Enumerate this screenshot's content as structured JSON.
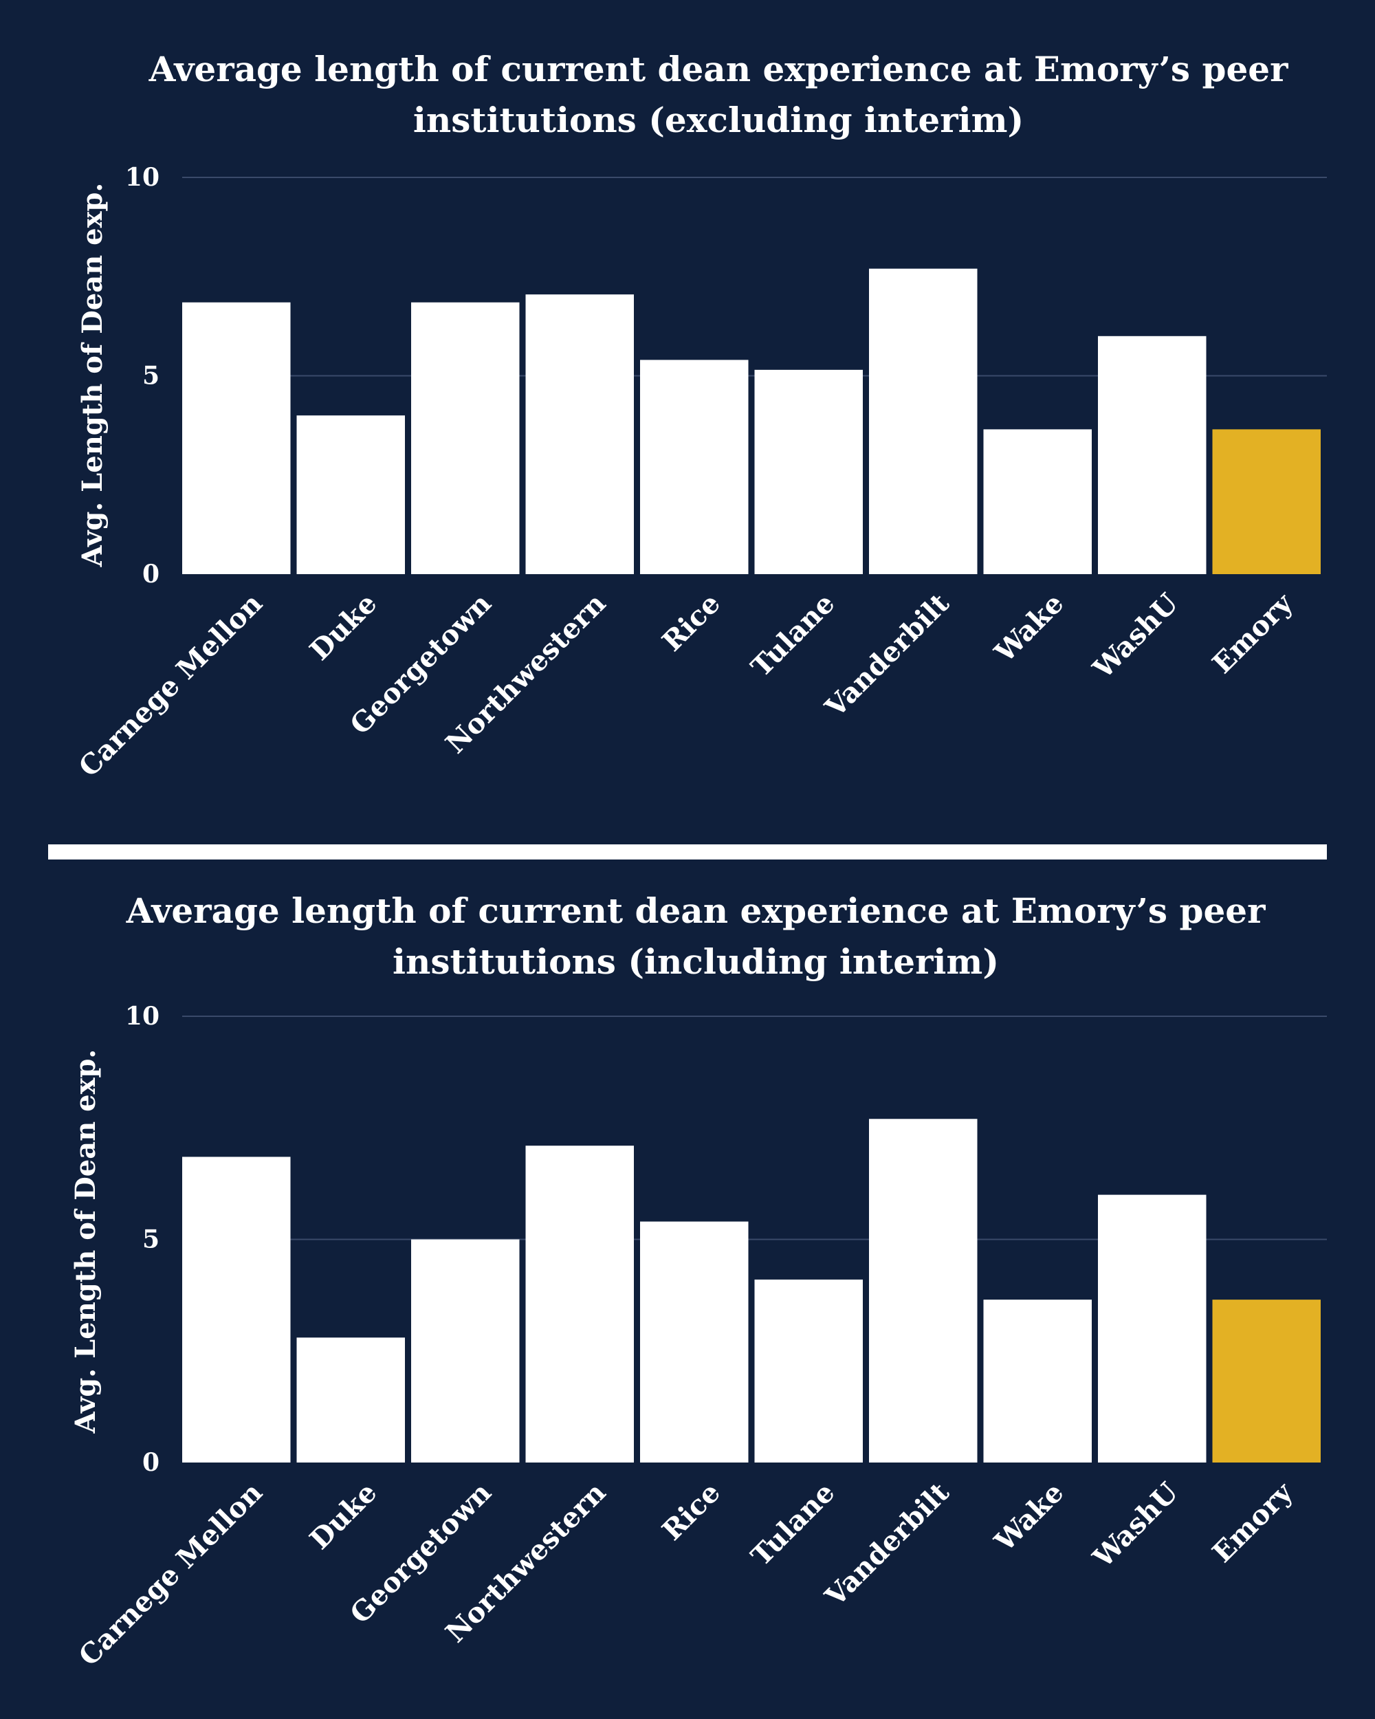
{
  "colors": {
    "background": "#0f1f3b",
    "bar": "#ffffff",
    "highlight": "#e3b124",
    "divider": "#ffffff",
    "gridline": "#3a4a6a"
  },
  "chart_data": [
    {
      "type": "bar",
      "title_lines": [
        "Average length of current dean experience at Emory’s peer",
        "institutions (excluding interim)"
      ],
      "ylabel": "Avg. Length of Dean exp.",
      "categories": [
        "Carnege Mellon",
        "Duke",
        "Georgetown",
        "Northwestern",
        "Rice",
        "Tulane",
        "Vanderbilt",
        "Wake",
        "WashU",
        "Emory"
      ],
      "values": [
        6.85,
        4.0,
        6.85,
        7.05,
        5.4,
        5.15,
        7.7,
        3.65,
        6.0,
        3.65
      ],
      "highlight": "Emory",
      "ylim": [
        0,
        10
      ],
      "yticks": [
        0,
        5,
        10
      ],
      "ytick_labels": [
        "0",
        "5",
        "10"
      ],
      "grid": true
    },
    {
      "type": "bar",
      "title_lines": [
        "Average length of current dean experience at Emory’s peer",
        "institutions (including interim)"
      ],
      "ylabel": "Avg. Length of Dean exp.",
      "categories": [
        "Carnege Mellon",
        "Duke",
        "Georgetown",
        "Northwestern",
        "Rice",
        "Tulane",
        "Vanderbilt",
        "Wake",
        "WashU",
        "Emory"
      ],
      "values": [
        6.85,
        2.8,
        5.0,
        7.1,
        5.4,
        4.1,
        7.7,
        3.65,
        6.0,
        3.65
      ],
      "highlight": "Emory",
      "ylim": [
        0,
        10
      ],
      "yticks": [
        0,
        5,
        10
      ],
      "ytick_labels": [
        "0",
        "5",
        "10"
      ],
      "grid": true
    }
  ]
}
